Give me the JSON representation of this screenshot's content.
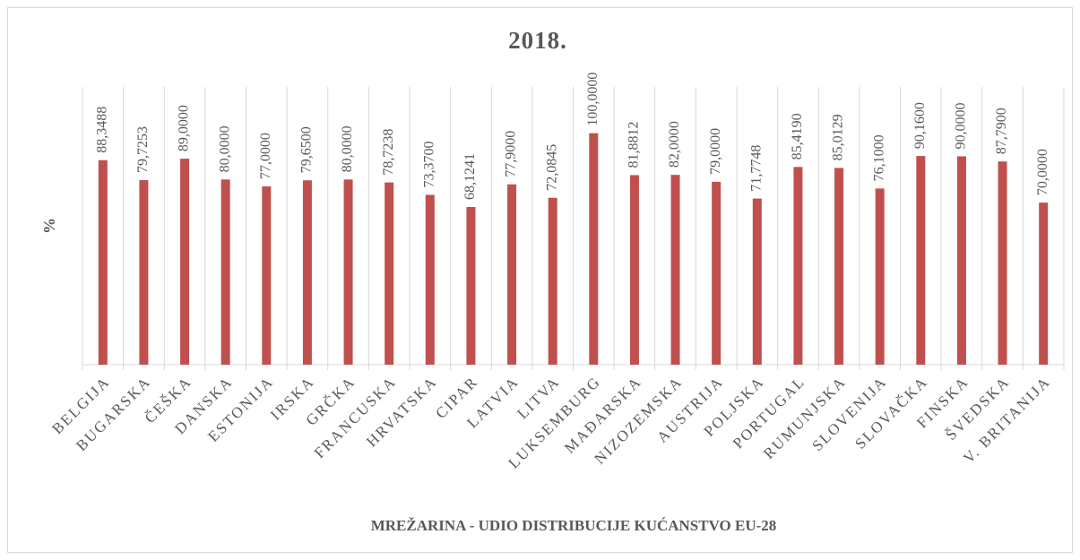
{
  "chart_data": {
    "type": "bar",
    "title": "2018.",
    "y_label": "%",
    "x_label": "MREŽARINA - UDIO DISTRIBUCIJE KUĆANSTVO EU-28",
    "categories": [
      "BELGIJA",
      "BUGARSKA",
      "ČEŠKA",
      "DANSKA",
      "ESTONIJA",
      "IRSKA",
      "GRČKA",
      "FRANCUSKA",
      "HRVATSKA",
      "CIPAR",
      "LATVIA",
      "LITVA",
      "LUKSEMBURG",
      "MAĐARSKA",
      "NIZOZEMSKA",
      "AUSTRIJA",
      "POLJSKA",
      "PORTUGAL",
      "RUMUNJSKA",
      "SLOVENIJA",
      "SLOVAČKA",
      "FINSKA",
      "ŠVEDSKA",
      "V. BRITANIJA"
    ],
    "values": [
      88.3488,
      79.7253,
      89,
      80,
      77,
      79.65,
      80,
      78.7238,
      73.37,
      68.1241,
      77.9,
      72.0845,
      100,
      81.8812,
      82,
      79,
      71.7748,
      85.419,
      85.0129,
      76.1,
      90.16,
      90,
      87.79,
      70
    ],
    "value_labels": [
      "88,3488",
      "79,7253",
      "89,0000",
      "80,0000",
      "77,0000",
      "79,6500",
      "80,0000",
      "78,7238",
      "73,3700",
      "68,1241",
      "77,9000",
      "72,0845",
      "100,0000",
      "81,8812",
      "82,0000",
      "79,0000",
      "71,7748",
      "85,4190",
      "85,0129",
      "76,1000",
      "90,1600",
      "90,0000",
      "87,7900",
      "70,0000"
    ],
    "color": "#c0504d",
    "ylim": [
      0,
      120
    ],
    "grid": true
  }
}
